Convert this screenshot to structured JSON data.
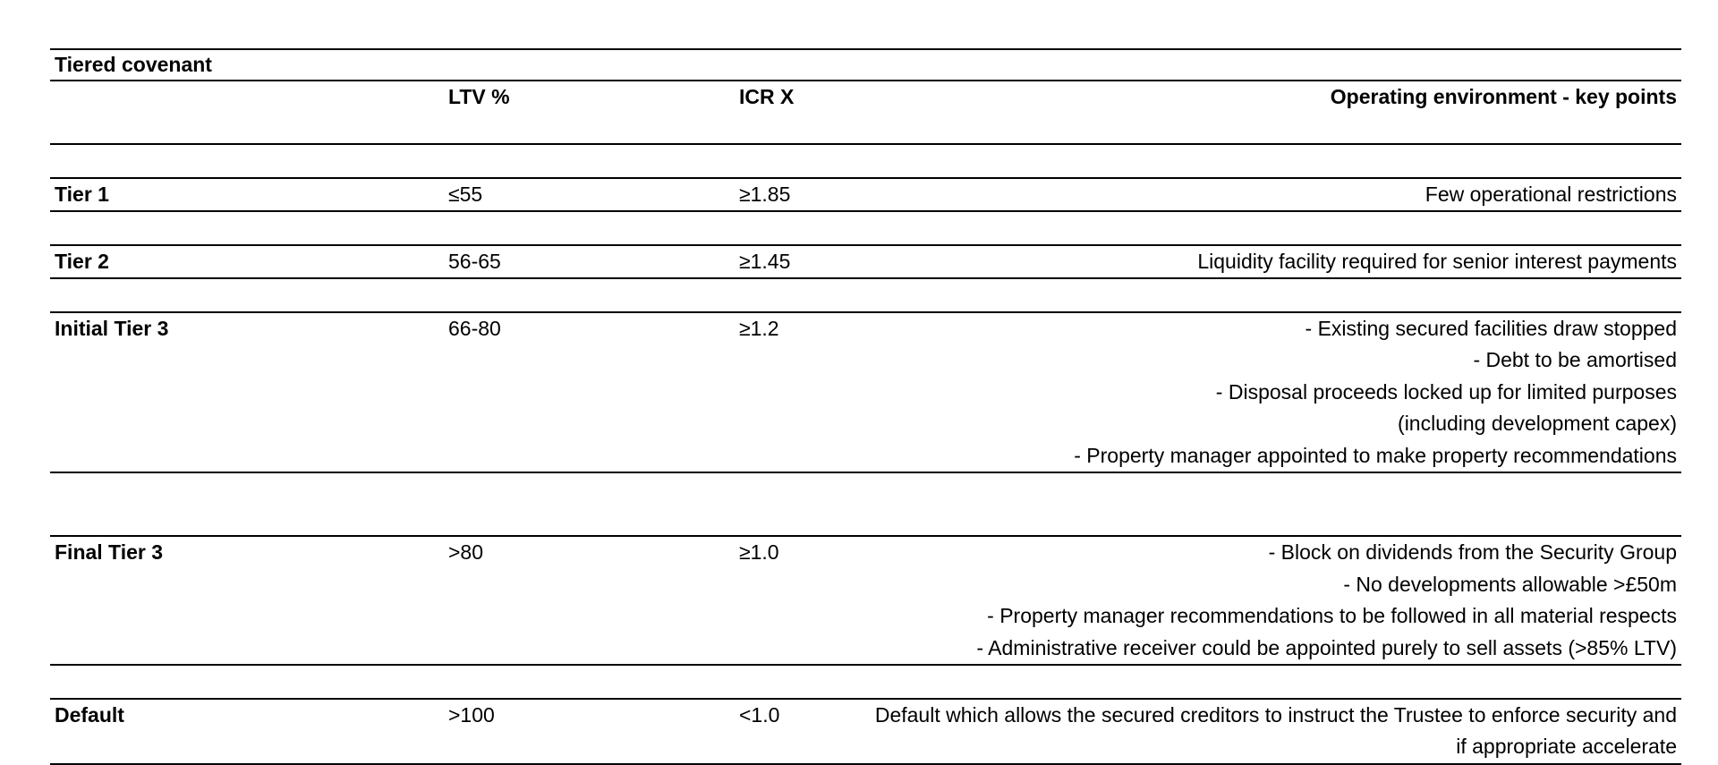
{
  "table": {
    "title": "Tiered covenant",
    "headers": {
      "ltv": "LTV %",
      "icr": "ICR X",
      "points": "Operating environment - key points"
    },
    "rows": [
      {
        "tier": "Tier 1",
        "ltv": "≤55",
        "icr": "≥1.85",
        "points": [
          "Few operational restrictions"
        ]
      },
      {
        "tier": "Tier 2",
        "ltv": "56-65",
        "icr": "≥1.45",
        "points": [
          "Liquidity facility required for senior interest payments"
        ]
      },
      {
        "tier": "Initial Tier 3",
        "ltv": "66-80",
        "icr": "≥1.2",
        "points": [
          "- Existing secured facilities draw stopped",
          "- Debt to be amortised",
          "- Disposal proceeds locked up for limited purposes",
          "(including development capex)",
          "- Property manager appointed to make property recommendations"
        ]
      },
      {
        "tier": "Final Tier 3",
        "ltv": ">80",
        "icr": "≥1.0",
        "points": [
          "- Block on dividends from the Security Group",
          "- No developments allowable >£50m",
          "- Property manager recommendations to be followed in all material respects",
          "- Administrative receiver could be appointed purely to sell assets (>85% LTV)"
        ]
      },
      {
        "tier": "Default",
        "ltv": ">100",
        "icr": "<1.0",
        "points": [
          "Default which allows the secured creditors to instruct the Trustee to enforce security and",
          "if appropriate accelerate"
        ]
      }
    ]
  }
}
